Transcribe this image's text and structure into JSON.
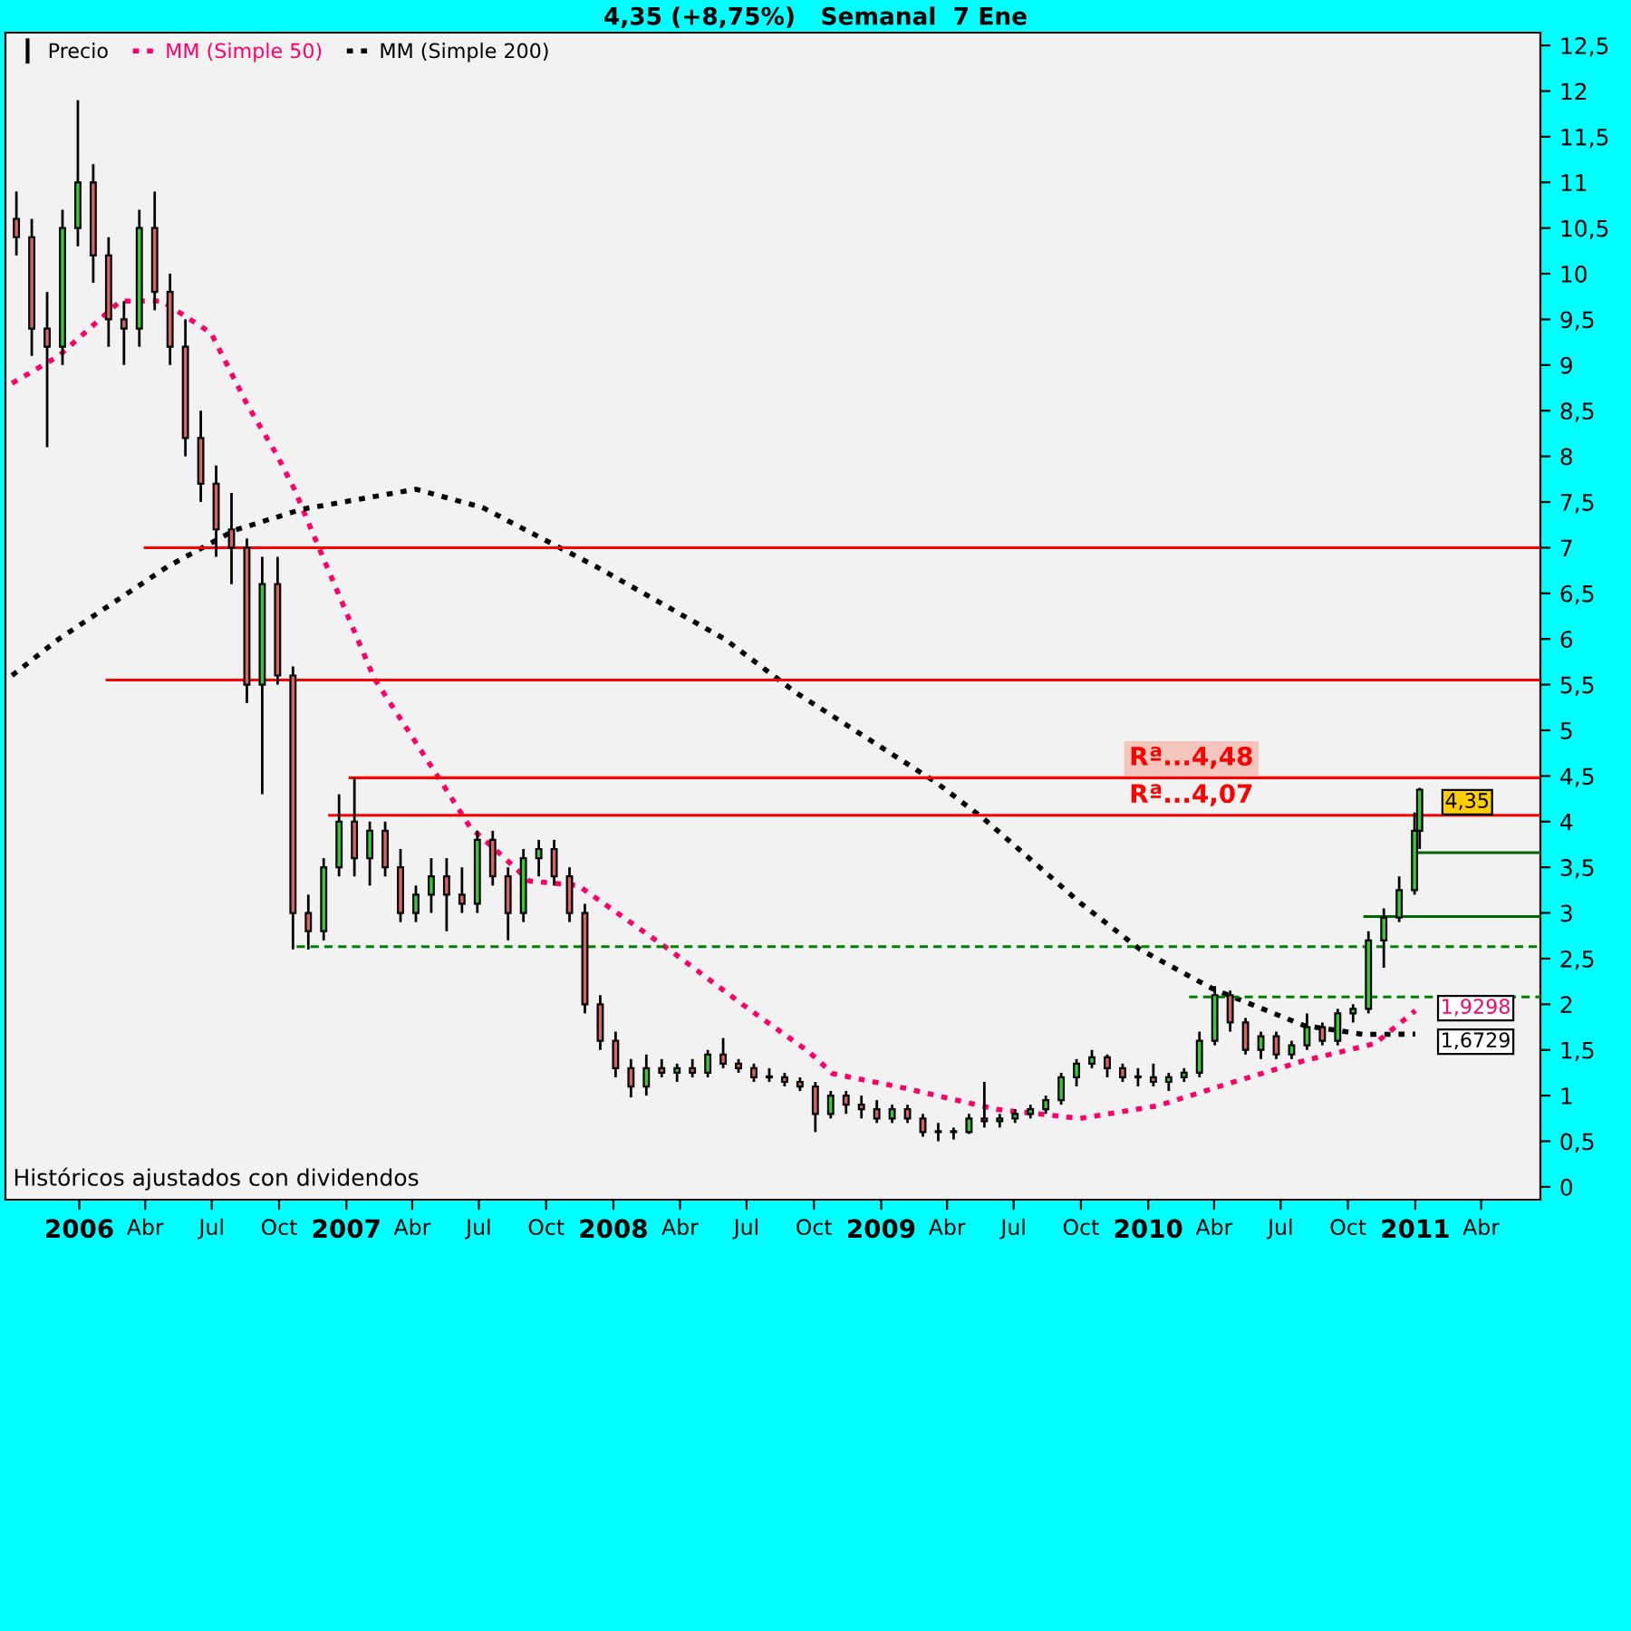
{
  "chart_data": {
    "type": "candlestick",
    "title": "4,35 (+8,75%)   Semanal  7 Ene",
    "legend": "top left",
    "grid": false,
    "line_style": "dotted",
    "marker": "none",
    "xlim": [
      "2005-09-22",
      "2011-06-21"
    ],
    "ylim": [
      -0.14,
      12.64
    ],
    "xticks": [
      {
        "value": "2006-01-01",
        "label": "2006"
      },
      {
        "value": "2006-04-01",
        "label": "Abr"
      },
      {
        "value": "2006-07-01",
        "label": "Jul"
      },
      {
        "value": "2006-10-01",
        "label": "Oct"
      },
      {
        "value": "2007-01-01",
        "label": "2007"
      },
      {
        "value": "2007-04-01",
        "label": "Abr"
      },
      {
        "value": "2007-07-01",
        "label": "Jul"
      },
      {
        "value": "2007-10-01",
        "label": "Oct"
      },
      {
        "value": "2008-01-01",
        "label": "2008"
      },
      {
        "value": "2008-04-01",
        "label": "Abr"
      },
      {
        "value": "2008-07-01",
        "label": "Jul"
      },
      {
        "value": "2008-10-01",
        "label": "Oct"
      },
      {
        "value": "2009-01-01",
        "label": "2009"
      },
      {
        "value": "2009-04-01",
        "label": "Abr"
      },
      {
        "value": "2009-07-01",
        "label": "Jul"
      },
      {
        "value": "2009-10-01",
        "label": "Oct"
      },
      {
        "value": "2010-01-01",
        "label": "2010"
      },
      {
        "value": "2010-04-01",
        "label": "Abr"
      },
      {
        "value": "2010-07-01",
        "label": "Jul"
      },
      {
        "value": "2010-10-01",
        "label": "Oct"
      },
      {
        "value": "2011-01-01",
        "label": "2011"
      },
      {
        "value": "2011-04-01",
        "label": "Abr"
      }
    ],
    "yticks": [
      0,
      {
        "value": 0.5,
        "label": "0,5"
      },
      1,
      {
        "value": 1.5,
        "label": "1,5"
      },
      2,
      {
        "value": 2.5,
        "label": "2,5"
      },
      3,
      {
        "value": 3.5,
        "label": "3,5"
      },
      4,
      {
        "value": 4.5,
        "label": "4,5"
      },
      5,
      {
        "value": 5.5,
        "label": "5,5"
      },
      6,
      {
        "value": 6.5,
        "label": "6,5"
      },
      7,
      {
        "value": 7.5,
        "label": "7,5"
      },
      8,
      {
        "value": 8.5,
        "label": "8,5"
      },
      9,
      {
        "value": 9.5,
        "label": "9,5"
      },
      10,
      {
        "value": 10.5,
        "label": "10,5"
      },
      11,
      {
        "value": 11.5,
        "label": "11,5"
      },
      12,
      {
        "value": 12.5,
        "label": "12,5"
      }
    ],
    "series": [
      {
        "name": "Precio",
        "color": "#000000",
        "x": [
          "2005-10-07",
          "2005-10-28",
          "2005-11-18",
          "2005-12-09",
          "2005-12-30",
          "2006-01-20",
          "2006-02-10",
          "2006-03-03",
          "2006-03-24",
          "2006-04-14",
          "2006-05-05",
          "2006-05-26",
          "2006-06-16",
          "2006-07-07",
          "2006-07-28",
          "2006-08-18",
          "2006-09-08",
          "2006-09-29",
          "2006-10-20",
          "2006-11-10",
          "2006-12-01",
          "2006-12-22",
          "2007-01-12",
          "2007-02-02",
          "2007-02-23",
          "2007-03-16",
          "2007-04-06",
          "2007-04-27",
          "2007-05-18",
          "2007-06-08",
          "2007-06-29",
          "2007-07-20",
          "2007-08-10",
          "2007-08-31",
          "2007-09-21",
          "2007-10-12",
          "2007-11-02",
          "2007-11-23",
          "2007-12-14",
          "2008-01-04",
          "2008-01-25",
          "2008-02-15",
          "2008-03-07",
          "2008-03-28",
          "2008-04-18",
          "2008-05-09",
          "2008-05-30",
          "2008-06-20",
          "2008-07-11",
          "2008-08-01",
          "2008-08-22",
          "2008-09-12",
          "2008-10-03",
          "2008-10-24",
          "2008-11-14",
          "2008-12-05",
          "2008-12-26",
          "2009-01-16",
          "2009-02-06",
          "2009-02-27",
          "2009-03-20",
          "2009-04-10",
          "2009-05-01",
          "2009-05-22",
          "2009-06-12",
          "2009-07-03",
          "2009-07-24",
          "2009-08-14",
          "2009-09-04",
          "2009-09-25",
          "2009-10-16",
          "2009-11-06",
          "2009-11-27",
          "2009-12-18",
          "2010-01-08",
          "2010-01-29",
          "2010-02-19",
          "2010-03-12",
          "2010-04-02",
          "2010-04-23",
          "2010-05-14",
          "2010-06-04",
          "2010-06-25",
          "2010-07-16",
          "2010-08-06",
          "2010-08-27",
          "2010-09-17",
          "2010-10-08",
          "2010-10-29",
          "2010-11-19",
          "2010-12-10",
          "2010-12-31",
          "2011-01-07"
        ],
        "ohlc": [
          [
            10.6,
            10.9,
            10.2,
            10.4
          ],
          [
            10.4,
            10.6,
            9.1,
            9.4
          ],
          [
            9.4,
            9.8,
            8.1,
            9.2
          ],
          [
            9.2,
            10.7,
            9.0,
            10.5
          ],
          [
            10.5,
            11.9,
            10.3,
            11.0
          ],
          [
            11.0,
            11.2,
            9.9,
            10.2
          ],
          [
            10.2,
            10.4,
            9.2,
            9.5
          ],
          [
            9.5,
            9.7,
            9.0,
            9.4
          ],
          [
            9.4,
            10.7,
            9.2,
            10.5
          ],
          [
            10.5,
            10.9,
            9.6,
            9.8
          ],
          [
            9.8,
            10.0,
            9.0,
            9.2
          ],
          [
            9.2,
            9.5,
            8.0,
            8.2
          ],
          [
            8.2,
            8.5,
            7.5,
            7.7
          ],
          [
            7.7,
            7.9,
            6.9,
            7.2
          ],
          [
            7.2,
            7.6,
            6.6,
            7.0
          ],
          [
            7.0,
            7.1,
            5.3,
            5.5
          ],
          [
            5.5,
            6.9,
            4.3,
            6.6
          ],
          [
            6.6,
            6.9,
            5.5,
            5.6
          ],
          [
            5.6,
            5.7,
            2.6,
            3.0
          ],
          [
            3.0,
            3.2,
            2.6,
            2.8
          ],
          [
            2.8,
            3.6,
            2.7,
            3.5
          ],
          [
            3.5,
            4.3,
            3.4,
            4.0
          ],
          [
            4.0,
            4.48,
            3.4,
            3.6
          ],
          [
            3.6,
            4.0,
            3.3,
            3.9
          ],
          [
            3.9,
            4.0,
            3.4,
            3.5
          ],
          [
            3.5,
            3.7,
            2.9,
            3.0
          ],
          [
            3.0,
            3.3,
            2.9,
            3.2
          ],
          [
            3.2,
            3.6,
            3.0,
            3.4
          ],
          [
            3.4,
            3.6,
            2.8,
            3.2
          ],
          [
            3.2,
            3.5,
            3.0,
            3.1
          ],
          [
            3.1,
            3.9,
            3.0,
            3.8
          ],
          [
            3.8,
            3.9,
            3.3,
            3.4
          ],
          [
            3.4,
            3.5,
            2.7,
            3.0
          ],
          [
            3.0,
            3.7,
            2.9,
            3.6
          ],
          [
            3.6,
            3.8,
            3.4,
            3.7
          ],
          [
            3.7,
            3.8,
            3.3,
            3.4
          ],
          [
            3.4,
            3.5,
            2.9,
            3.0
          ],
          [
            3.0,
            3.1,
            1.9,
            2.0
          ],
          [
            2.0,
            2.1,
            1.5,
            1.6
          ],
          [
            1.6,
            1.7,
            1.2,
            1.3
          ],
          [
            1.3,
            1.4,
            0.98,
            1.1
          ],
          [
            1.1,
            1.45,
            1.0,
            1.3
          ],
          [
            1.3,
            1.4,
            1.2,
            1.25
          ],
          [
            1.25,
            1.35,
            1.15,
            1.3
          ],
          [
            1.3,
            1.4,
            1.2,
            1.25
          ],
          [
            1.25,
            1.5,
            1.2,
            1.45
          ],
          [
            1.45,
            1.63,
            1.3,
            1.35
          ],
          [
            1.35,
            1.4,
            1.25,
            1.3
          ],
          [
            1.3,
            1.35,
            1.15,
            1.2
          ],
          [
            1.2,
            1.3,
            1.15,
            1.2
          ],
          [
            1.2,
            1.25,
            1.1,
            1.15
          ],
          [
            1.15,
            1.2,
            1.05,
            1.1
          ],
          [
            1.1,
            1.15,
            0.6,
            0.8
          ],
          [
            0.8,
            1.05,
            0.75,
            1.0
          ],
          [
            1.0,
            1.05,
            0.8,
            0.9
          ],
          [
            0.9,
            1.0,
            0.75,
            0.85
          ],
          [
            0.85,
            0.95,
            0.7,
            0.75
          ],
          [
            0.75,
            0.9,
            0.7,
            0.85
          ],
          [
            0.85,
            0.9,
            0.7,
            0.75
          ],
          [
            0.75,
            0.8,
            0.55,
            0.6
          ],
          [
            0.6,
            0.7,
            0.5,
            0.6
          ],
          [
            0.6,
            0.65,
            0.52,
            0.6
          ],
          [
            0.6,
            0.8,
            0.58,
            0.75
          ],
          [
            0.75,
            1.15,
            0.65,
            0.72
          ],
          [
            0.72,
            0.8,
            0.65,
            0.75
          ],
          [
            0.75,
            0.85,
            0.7,
            0.8
          ],
          [
            0.8,
            0.9,
            0.75,
            0.85
          ],
          [
            0.85,
            1.0,
            0.8,
            0.95
          ],
          [
            0.95,
            1.25,
            0.9,
            1.2
          ],
          [
            1.2,
            1.4,
            1.1,
            1.35
          ],
          [
            1.35,
            1.5,
            1.3,
            1.42
          ],
          [
            1.42,
            1.45,
            1.2,
            1.3
          ],
          [
            1.3,
            1.35,
            1.15,
            1.2
          ],
          [
            1.2,
            1.3,
            1.1,
            1.2
          ],
          [
            1.2,
            1.35,
            1.1,
            1.15
          ],
          [
            1.15,
            1.25,
            1.05,
            1.2
          ],
          [
            1.2,
            1.3,
            1.15,
            1.25
          ],
          [
            1.25,
            1.7,
            1.2,
            1.6
          ],
          [
            1.6,
            2.2,
            1.55,
            2.1
          ],
          [
            2.1,
            2.15,
            1.7,
            1.8
          ],
          [
            1.8,
            1.85,
            1.45,
            1.5
          ],
          [
            1.5,
            1.7,
            1.4,
            1.65
          ],
          [
            1.65,
            1.7,
            1.4,
            1.45
          ],
          [
            1.45,
            1.6,
            1.4,
            1.55
          ],
          [
            1.55,
            1.9,
            1.5,
            1.75
          ],
          [
            1.75,
            1.8,
            1.55,
            1.6
          ],
          [
            1.6,
            1.95,
            1.55,
            1.9
          ],
          [
            1.9,
            2.0,
            1.8,
            1.95
          ],
          [
            1.95,
            2.8,
            1.9,
            2.7
          ],
          [
            2.7,
            3.05,
            2.4,
            2.95
          ],
          [
            2.95,
            3.4,
            2.9,
            3.25
          ],
          [
            3.25,
            4.1,
            3.2,
            3.9
          ],
          [
            3.9,
            4.37,
            3.7,
            4.35
          ]
        ]
      },
      {
        "type": "line",
        "name": "MM (Simple 50)",
        "color": "#ff0066",
        "x": [
          "2005-10-01",
          "2005-12-04",
          "2006-02-26",
          "2006-04-24",
          "2006-06-30",
          "2006-08-19",
          "2006-09-27",
          "2006-10-22",
          "2006-11-25",
          "2007-02-08",
          "2007-05-08",
          "2007-06-19",
          "2007-07-31",
          "2007-09-08",
          "2007-11-14",
          "2008-03-17",
          "2008-06-25",
          "2008-09-24",
          "2008-10-27",
          "2009-02-03",
          "2009-06-07",
          "2009-09-30",
          "2010-01-15",
          "2010-04-24",
          "2010-08-01",
          "2010-11-07",
          "2011-01-01"
        ],
        "values": [
          8.8,
          9.1,
          9.7,
          9.7,
          9.35,
          8.56,
          8.03,
          7.64,
          6.99,
          5.57,
          4.47,
          3.94,
          3.64,
          3.35,
          3.3,
          2.6,
          2.0,
          1.48,
          1.24,
          1.08,
          0.85,
          0.75,
          0.89,
          1.14,
          1.38,
          1.57,
          1.9298
        ]
      },
      {
        "type": "line",
        "name": "MM (Simple 200)",
        "color": "#000000",
        "x": [
          "2005-10-01",
          "2005-12-04",
          "2006-05-01",
          "2006-08-01",
          "2006-11-01",
          "2007-04-06",
          "2007-07-06",
          "2007-12-09",
          "2008-06-01",
          "2008-09-07",
          "2009-03-17",
          "2009-05-20",
          "2009-08-27",
          "2009-09-30",
          "2009-12-21",
          "2010-03-30",
          "2010-08-01",
          "2010-10-22",
          "2011-01-01"
        ],
        "values": [
          5.6,
          6.0,
          6.79,
          7.19,
          7.42,
          7.64,
          7.44,
          6.79,
          6.0,
          5.41,
          4.43,
          4.04,
          3.35,
          3.11,
          2.6,
          2.17,
          1.77,
          1.67,
          1.6729
        ]
      },
      {
        "type": "line",
        "color": "#ff0000",
        "line_style": "solid",
        "x": [
          "2006-04-01",
          "2011-06-21"
        ],
        "values": [
          7,
          7
        ]
      },
      {
        "type": "line",
        "color": "#ff0000",
        "line_style": "solid",
        "x": [
          "2006-02-08",
          "2011-06-21"
        ],
        "values": [
          5.55,
          5.55
        ]
      },
      {
        "type": "line",
        "color": "#ff0000",
        "line_style": "solid",
        "x": [
          "2007-01-06",
          "2011-06-21"
        ],
        "values": [
          4.48,
          4.48
        ]
      },
      {
        "type": "line",
        "color": "#ff0000",
        "line_style": "solid",
        "x": [
          "2006-12-09",
          "2011-06-21"
        ],
        "values": [
          4.07,
          4.07
        ]
      },
      {
        "type": "line",
        "color": "#008000",
        "line_style": "dashed",
        "x": [
          "2006-10-25",
          "2011-06-21"
        ],
        "values": [
          2.63,
          2.63
        ]
      },
      {
        "type": "line",
        "color": "#008000",
        "line_style": "dashed",
        "x": [
          "2010-02-26",
          "2011-06-21"
        ],
        "values": [
          2.08,
          2.08
        ]
      },
      {
        "type": "line",
        "color": "#006600",
        "line_style": "solid",
        "x": [
          "2011-01-01",
          "2011-06-21"
        ],
        "values": [
          3.66,
          3.66
        ]
      },
      {
        "type": "line",
        "color": "#006600",
        "line_style": "solid",
        "x": [
          "2010-10-24",
          "2011-06-21"
        ],
        "values": [
          2.96,
          2.96
        ]
      }
    ],
    "annotations": [
      {
        "text": "Rª...4,48",
        "x": "2010-03-01",
        "y": 4.48
      },
      {
        "text": "Rª...4,07",
        "x": "2010-03-01",
        "y": 4.07
      },
      {
        "text": "4,35",
        "x": "2011-01-07",
        "y": 4.35
      },
      {
        "text": "1,9298",
        "x": "2011-01-01",
        "y": 1.9298
      },
      {
        "text": "1,6729",
        "x": "2011-01-01",
        "y": 1.6729
      },
      "Históricos ajustados con dividendos"
    ]
  }
}
